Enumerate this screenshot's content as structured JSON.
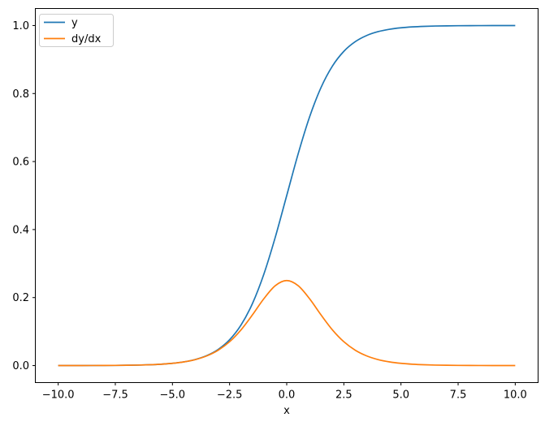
{
  "figure": {
    "background": "#ffffff"
  },
  "chart_data": {
    "type": "line",
    "title": "",
    "xlabel": "x",
    "ylabel": "",
    "xlim": [
      -11,
      11
    ],
    "ylim": [
      -0.05,
      1.05
    ],
    "grid": false,
    "axis_color": "#000000",
    "legend": {
      "position": "upper left",
      "entries": [
        "y",
        "dy/dx"
      ]
    },
    "xticks": {
      "values": [
        -10.0,
        -7.5,
        -5.0,
        -2.5,
        0.0,
        2.5,
        5.0,
        7.5,
        10.0
      ],
      "labels": [
        "−10.0",
        "−7.5",
        "−5.0",
        "−2.5",
        "0.0",
        "2.5",
        "5.0",
        "7.5",
        "10.0"
      ]
    },
    "yticks": {
      "values": [
        0.0,
        0.2,
        0.4,
        0.6,
        0.8,
        1.0
      ],
      "labels": [
        "0.0",
        "0.2",
        "0.4",
        "0.6",
        "0.8",
        "1.0"
      ]
    },
    "x": [
      -10,
      -9.5,
      -9,
      -8.5,
      -8,
      -7.5,
      -7,
      -6.5,
      -6,
      -5.5,
      -5,
      -4.5,
      -4,
      -3.5,
      -3,
      -2.5,
      -2,
      -1.5,
      -1,
      -0.5,
      0,
      0.5,
      1,
      1.5,
      2,
      2.5,
      3,
      3.5,
      4,
      4.5,
      5,
      5.5,
      6,
      6.5,
      7,
      7.5,
      8,
      8.5,
      9,
      9.5,
      10
    ],
    "series": [
      {
        "name": "y",
        "color": "#1f77b4",
        "values": [
          5e-05,
          7e-05,
          0.00012,
          0.0002,
          0.00034,
          0.00055,
          0.00091,
          0.0015,
          0.00247,
          0.00407,
          0.00669,
          0.011,
          0.01799,
          0.02931,
          0.04743,
          0.07586,
          0.1192,
          0.18243,
          0.26894,
          0.37754,
          0.5,
          0.62246,
          0.73106,
          0.81757,
          0.8808,
          0.92414,
          0.95257,
          0.97069,
          0.98201,
          0.989,
          0.99331,
          0.99593,
          0.99753,
          0.9985,
          0.99909,
          0.99945,
          0.99966,
          0.9998,
          0.99988,
          0.99993,
          0.99995
        ]
      },
      {
        "name": "dy/dx",
        "color": "#ff7f0e",
        "values": [
          5e-05,
          7e-05,
          0.00012,
          0.0002,
          0.00034,
          0.00055,
          0.00091,
          0.0015,
          0.00246,
          0.00406,
          0.00665,
          0.01088,
          0.01766,
          0.02845,
          0.04518,
          0.0701,
          0.10499,
          0.14915,
          0.19661,
          0.235,
          0.25,
          0.235,
          0.19661,
          0.14915,
          0.10499,
          0.0701,
          0.04518,
          0.02845,
          0.01766,
          0.01088,
          0.00665,
          0.00406,
          0.00246,
          0.0015,
          0.00091,
          0.00055,
          0.00034,
          0.0002,
          0.00012,
          7e-05,
          5e-05
        ]
      }
    ]
  }
}
